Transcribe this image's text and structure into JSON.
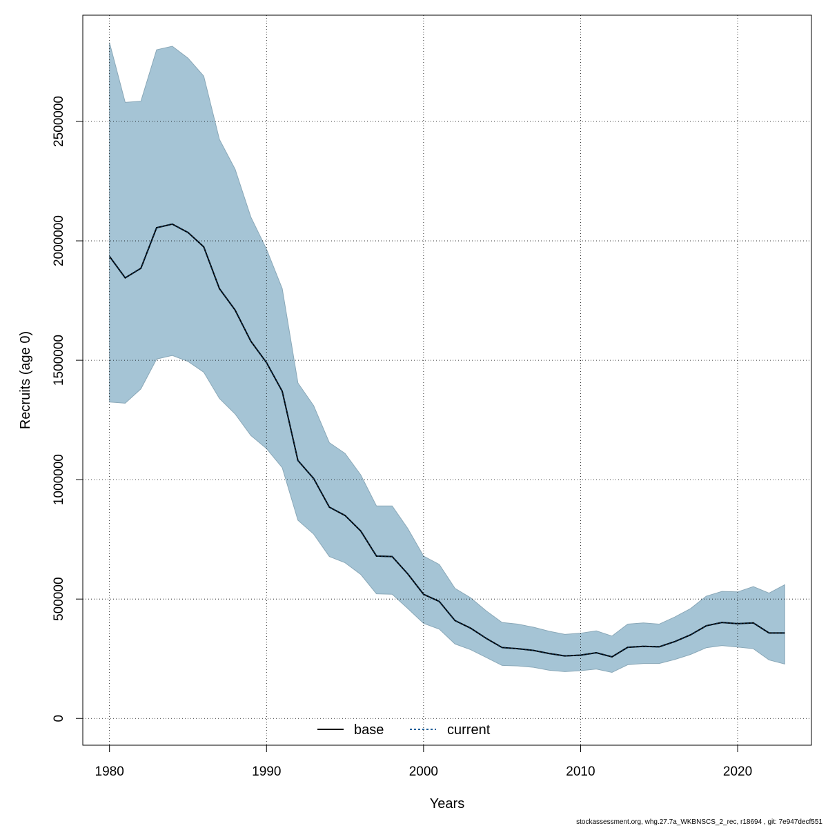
{
  "footer": "stockassessment.org, whg.27.7a_WKBNSCS_2_rec, r18694 , git: 7e947decf551",
  "colors": {
    "band_fill": "#a5c4d5",
    "band_stroke": "#8aa8b8",
    "base_line": "#000000",
    "current_line": "#1f5f99",
    "grid": "#000000"
  },
  "chart_data": {
    "type": "area",
    "xlabel": "Years",
    "ylabel": "Recruits (age 0)",
    "xlim": [
      1978.3,
      2024.7
    ],
    "ylim": [
      -112000,
      2945000
    ],
    "xticks": [
      1980,
      1990,
      2000,
      2010,
      2020
    ],
    "yticks": [
      0,
      500000,
      1000000,
      1500000,
      2000000,
      2500000
    ],
    "grid": true,
    "legend_position": "bottom-center",
    "x": [
      1980,
      1981,
      1982,
      1983,
      1984,
      1985,
      1986,
      1987,
      1988,
      1989,
      1990,
      1991,
      1992,
      1993,
      1994,
      1995,
      1996,
      1997,
      1998,
      1999,
      2000,
      2001,
      2002,
      2003,
      2004,
      2005,
      2006,
      2007,
      2008,
      2009,
      2010,
      2011,
      2012,
      2013,
      2014,
      2015,
      2016,
      2017,
      2018,
      2019,
      2020,
      2021,
      2022,
      2023
    ],
    "series": [
      {
        "name": "base",
        "style": "solid",
        "values": [
          1935000,
          1845000,
          1885000,
          2055000,
          2070000,
          2035000,
          1975000,
          1800000,
          1710000,
          1580000,
          1490000,
          1370000,
          1080000,
          1005000,
          885000,
          850000,
          785000,
          680000,
          678000,
          605000,
          520000,
          490000,
          410000,
          378000,
          335000,
          297000,
          292000,
          285000,
          272000,
          262000,
          265000,
          275000,
          258000,
          298000,
          302000,
          300000,
          322000,
          350000,
          388000,
          402000,
          397000,
          400000,
          358000,
          358000
        ]
      },
      {
        "name": "current",
        "style": "dotted",
        "values": [
          1935000,
          1845000,
          1885000,
          2055000,
          2070000,
          2035000,
          1975000,
          1800000,
          1710000,
          1580000,
          1490000,
          1370000,
          1080000,
          1005000,
          885000,
          850000,
          785000,
          680000,
          678000,
          605000,
          520000,
          490000,
          410000,
          378000,
          335000,
          297000,
          292000,
          285000,
          272000,
          262000,
          265000,
          275000,
          258000,
          298000,
          302000,
          300000,
          322000,
          350000,
          388000,
          402000,
          397000,
          400000,
          358000,
          358000
        ]
      }
    ],
    "band": {
      "upper": [
        2830000,
        2580000,
        2585000,
        2800000,
        2815000,
        2765000,
        2690000,
        2425000,
        2300000,
        2100000,
        1965000,
        1800000,
        1405000,
        1310000,
        1155000,
        1110000,
        1020000,
        890000,
        890000,
        795000,
        680000,
        645000,
        545000,
        505000,
        450000,
        402000,
        395000,
        382000,
        365000,
        352000,
        357000,
        367000,
        345000,
        395000,
        400000,
        395000,
        425000,
        460000,
        512000,
        532000,
        530000,
        552000,
        525000,
        560000
      ],
      "lower": [
        1325000,
        1320000,
        1380000,
        1505000,
        1520000,
        1495000,
        1450000,
        1340000,
        1275000,
        1185000,
        1130000,
        1050000,
        830000,
        772000,
        678000,
        652000,
        603000,
        522000,
        520000,
        460000,
        398000,
        374000,
        312000,
        288000,
        255000,
        222000,
        220000,
        214000,
        202000,
        196000,
        200000,
        207000,
        193000,
        225000,
        230000,
        230000,
        247000,
        268000,
        296000,
        305000,
        299000,
        292000,
        245000,
        228000
      ]
    }
  }
}
